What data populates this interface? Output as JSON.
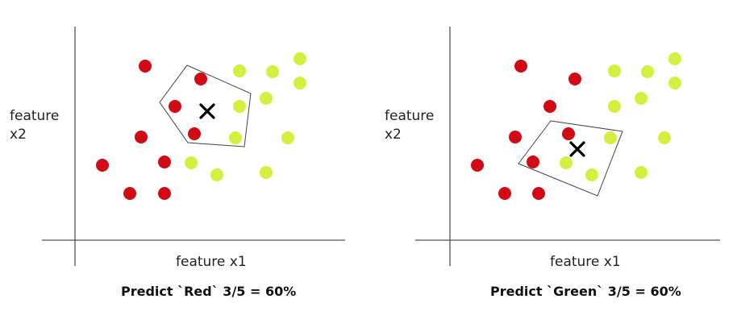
{
  "colors": {
    "red": "#d10a14",
    "green": "#d4ef3e",
    "axis": "#555555",
    "query": "#000000"
  },
  "panels": [
    {
      "ylabel": "feature\nx2",
      "xlabel": "feature x1",
      "caption": "Predict `Red` 3/5 = 60%",
      "prediction": "Red",
      "k": 5,
      "neighbors_red": 3,
      "neighbors_green": 2,
      "red_points": [
        [
          180,
          82
        ],
        [
          249,
          98
        ],
        [
          217,
          132
        ],
        [
          241,
          166
        ],
        [
          175,
          170
        ],
        [
          127,
          205
        ],
        [
          204,
          201
        ],
        [
          161,
          240
        ],
        [
          204,
          240
        ]
      ],
      "green_points": [
        [
          297,
          88
        ],
        [
          338,
          89
        ],
        [
          372,
          73
        ],
        [
          372,
          103
        ],
        [
          297,
          132
        ],
        [
          330,
          122
        ],
        [
          292,
          171
        ],
        [
          357,
          171
        ],
        [
          237,
          202
        ],
        [
          269,
          217
        ],
        [
          330,
          214
        ]
      ],
      "query": [
        257,
        138
      ],
      "neighborhood": [
        [
          232,
          81
        ],
        [
          311,
          116
        ],
        [
          303,
          182
        ],
        [
          233,
          177
        ],
        [
          198,
          127
        ]
      ]
    },
    {
      "ylabel": "feature\nx2",
      "xlabel": "feature x1",
      "caption": "Predict `Green` 3/5 = 60%",
      "prediction": "Green",
      "k": 5,
      "neighbors_red": 2,
      "neighbors_green": 3,
      "red_points": [
        [
          646,
          82
        ],
        [
          713,
          98
        ],
        [
          682,
          132
        ],
        [
          639,
          170
        ],
        [
          705,
          166
        ],
        [
          592,
          205
        ],
        [
          661,
          201
        ],
        [
          626,
          240
        ],
        [
          668,
          240
        ]
      ],
      "green_points": [
        [
          762,
          88
        ],
        [
          803,
          89
        ],
        [
          837,
          73
        ],
        [
          837,
          103
        ],
        [
          762,
          132
        ],
        [
          795,
          122
        ],
        [
          757,
          171
        ],
        [
          824,
          171
        ],
        [
          702,
          202
        ],
        [
          734,
          217
        ],
        [
          795,
          214
        ]
      ],
      "query": [
        716,
        185
      ],
      "neighborhood": [
        [
          683,
          150
        ],
        [
          772,
          163
        ],
        [
          741,
          243
        ],
        [
          643,
          203
        ]
      ]
    }
  ]
}
